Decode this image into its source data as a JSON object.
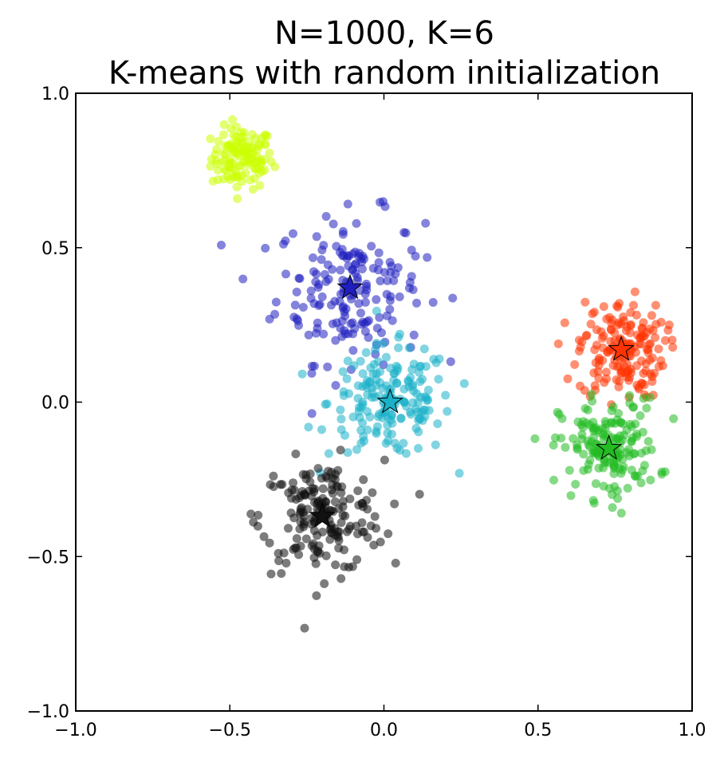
{
  "chart_data": {
    "type": "scatter",
    "title_line1": "N=1000, K=6",
    "title_line2": "K-means with random initialization",
    "xlabel": "",
    "ylabel": "",
    "xlim": [
      -1.0,
      1.0
    ],
    "ylim": [
      -1.0,
      1.0
    ],
    "x_ticks": [
      -1.0,
      -0.5,
      0.0,
      0.5,
      1.0
    ],
    "y_ticks": [
      -1.0,
      -0.5,
      0.0,
      0.5,
      1.0
    ],
    "x_tick_labels": [
      "−1.0",
      "−0.5",
      "0.0",
      "0.5",
      "1.0"
    ],
    "y_tick_labels": [
      "−1.0",
      "−0.5",
      "0.0",
      "0.5",
      "1.0"
    ],
    "grid": false,
    "legend": "none",
    "clusters": [
      {
        "color": "#ccff00",
        "center": [
          -0.46,
          0.79
        ],
        "spread": [
          0.05,
          0.05
        ],
        "count": 120,
        "centroid_marker": false
      },
      {
        "color": "#1f1fbf",
        "center": [
          -0.11,
          0.37
        ],
        "spread": [
          0.12,
          0.12
        ],
        "count": 180,
        "centroid_marker": true,
        "centroid": [
          -0.11,
          0.37
        ]
      },
      {
        "color": "#1ab0c8",
        "center": [
          0.02,
          0.0
        ],
        "spread": [
          0.1,
          0.09
        ],
        "count": 180,
        "centroid_marker": true,
        "centroid": [
          0.02,
          0.0
        ]
      },
      {
        "color": "#111111",
        "center": [
          -0.2,
          -0.37
        ],
        "spread": [
          0.1,
          0.09
        ],
        "count": 180,
        "centroid_marker": true,
        "centroid": [
          -0.2,
          -0.37
        ]
      },
      {
        "color": "#ff3300",
        "center": [
          0.77,
          0.17
        ],
        "spread": [
          0.07,
          0.08
        ],
        "count": 170,
        "centroid_marker": true,
        "centroid": [
          0.77,
          0.17
        ]
      },
      {
        "color": "#22bb22",
        "center": [
          0.73,
          -0.15
        ],
        "spread": [
          0.08,
          0.08
        ],
        "count": 170,
        "centroid_marker": true,
        "centroid": [
          0.73,
          -0.15
        ]
      }
    ]
  }
}
